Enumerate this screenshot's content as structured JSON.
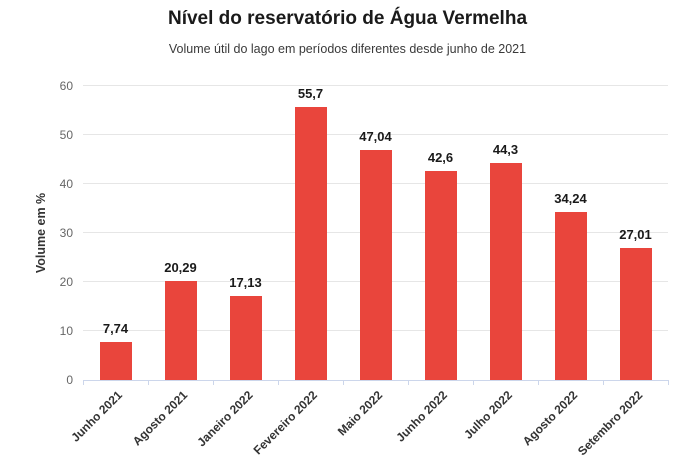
{
  "chart_data": {
    "type": "bar",
    "title": "Nível do reservatório de Água Vermelha",
    "subtitle": "Volume útil do lago em períodos diferentes desde junho de 2021",
    "xlabel": "",
    "ylabel": "Volume em %",
    "ylim": [
      0,
      60
    ],
    "yticks": [
      0,
      10,
      20,
      30,
      40,
      50,
      60
    ],
    "grid": true,
    "legend": "none",
    "categories": [
      "Junho 2021",
      "Agosto 2021",
      "Janeiro 2022",
      "Fevereiro 2022",
      "Maio 2022",
      "Junho 2022",
      "Julho 2022",
      "Agosto 2022",
      "Setembro 2022"
    ],
    "values": [
      7.74,
      20.29,
      17.13,
      55.7,
      47.04,
      42.6,
      44.3,
      34.24,
      27.01
    ],
    "value_labels": [
      "7,74",
      "20,29",
      "17,13",
      "55,7",
      "47,04",
      "42,6",
      "44,3",
      "34,24",
      "27,01"
    ],
    "colors": {
      "bar": "#e9453c",
      "grid": "#e6e6e6",
      "axis_line": "#ccd6eb",
      "title": "#1a1a1a",
      "subtitle": "#3a3a3a",
      "y_tick_label": "#666666",
      "x_tick_label": "#333333",
      "data_label": "#1a1a1a",
      "background": "#ffffff"
    }
  }
}
